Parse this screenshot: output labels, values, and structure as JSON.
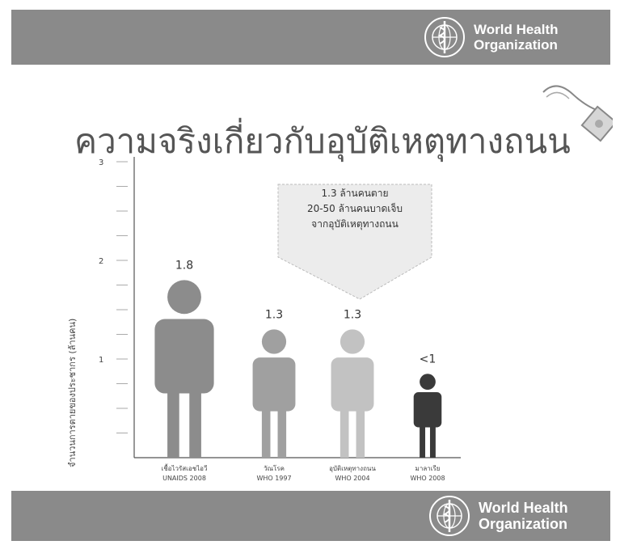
{
  "header": {
    "org_line1": "World Health",
    "org_line2": "Organization"
  },
  "footer": {
    "org_line1": "World Health",
    "org_line2": "Organization"
  },
  "page": {
    "title": "ความจริงเกี่ยวกับอุบัติเหตุทางถนน"
  },
  "callout": {
    "line1": "1.3 ล้านคนตาย",
    "line2": "20-50 ล้านคนบาดเจ็บ",
    "line3": "จากอุบัติเหตุทางถนน"
  },
  "chart_data": {
    "type": "bar",
    "ylabel": "จำนวนการตายของประชากร (ล้านคน)",
    "ylim": [
      0,
      3
    ],
    "yticks": [
      "1",
      "2",
      "3"
    ],
    "categories": [
      {
        "name": "เชื้อไวรัสเอชไอวี",
        "source": "UNAIDS 2008"
      },
      {
        "name": "วัณโรค",
        "source": "WHO 1997"
      },
      {
        "name": "อุบัติเหตุทางถนน",
        "source": "WHO 2004"
      },
      {
        "name": "มาลาเรีย",
        "source": "WHO 2008"
      }
    ],
    "values": [
      1.8,
      1.3,
      1.3,
      0.85
    ],
    "value_labels": [
      "1.8",
      "1.3",
      "1.3",
      "<1"
    ],
    "colors": [
      "#8c8c8c",
      "#a0a0a0",
      "#c2c2c2",
      "#3a3a3a"
    ],
    "grid": false
  }
}
